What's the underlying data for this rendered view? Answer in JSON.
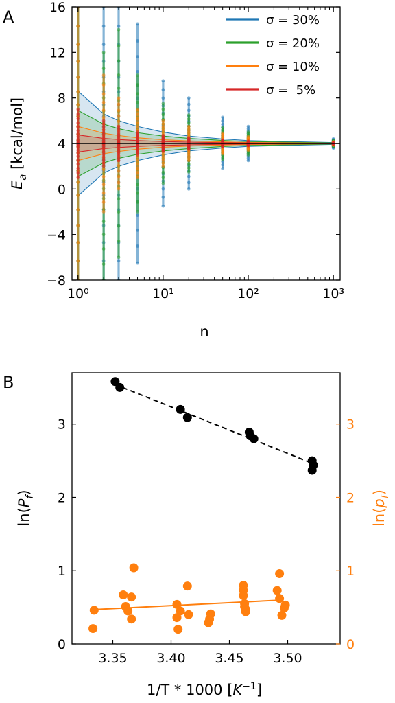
{
  "chart_data": [
    {
      "panel_label": "A",
      "type": "scatter",
      "xlabel": "n",
      "xscale": "log",
      "xlim": [
        0.85,
        1200
      ],
      "xtick_labels": [
        "10⁰",
        "10¹",
        "10²",
        "10³"
      ],
      "xticks": [
        1,
        10,
        100,
        1000
      ],
      "ylabel": "E_a [kcal/mol]",
      "ylim": [
        -8,
        16
      ],
      "yticks": [
        16,
        12,
        8,
        4,
        0,
        -4,
        -8
      ],
      "ytick_labels": [
        "16",
        "12",
        "8",
        "4",
        "0",
        "−4",
        "−8"
      ],
      "reference_value": 4,
      "n_values": [
        1,
        2,
        3,
        5,
        10,
        20,
        50,
        100,
        1000
      ],
      "legend_position": "top-right",
      "series": [
        {
          "name": "σ = 30%",
          "sigma": 0.3,
          "color": "#1f77b4"
        },
        {
          "name": "σ = 20%",
          "sigma": 0.2,
          "color": "#2ca02c"
        },
        {
          "name": "σ = 10%",
          "sigma": 0.1,
          "color": "#ff7f0e"
        },
        {
          "name": "σ =  5%",
          "sigma": 0.05,
          "color": "#d62728"
        }
      ],
      "scatter_extent": {
        "x": [
          1,
          2,
          3,
          5,
          10,
          20,
          50,
          100,
          1000
        ],
        "sigma_30": [
          [
            -8,
            16
          ],
          [
            -8,
            16
          ],
          [
            -8,
            16
          ],
          [
            -6.5,
            14.5
          ],
          [
            -1.5,
            9.5
          ],
          [
            0,
            8
          ],
          [
            1.8,
            6.3
          ],
          [
            2.5,
            5.5
          ],
          [
            3.6,
            4.4
          ]
        ],
        "sigma_20": [
          [
            -8,
            16
          ],
          [
            -8,
            12
          ],
          [
            -6,
            14
          ],
          [
            -2,
            10
          ],
          [
            0.5,
            7.5
          ],
          [
            1.5,
            6.5
          ],
          [
            2.6,
            5.4
          ],
          [
            3,
            5
          ],
          [
            3.75,
            4.25
          ]
        ],
        "sigma_10": [
          [
            -8,
            16
          ],
          [
            -2,
            10
          ],
          [
            0,
            8
          ],
          [
            1,
            7
          ],
          [
            2,
            6
          ],
          [
            2.5,
            5.5
          ],
          [
            3.1,
            4.9
          ],
          [
            3.4,
            4.6
          ],
          [
            3.85,
            4.15
          ]
        ],
        "sigma_5": [
          [
            1,
            7
          ],
          [
            2,
            6
          ],
          [
            2.5,
            5.5
          ],
          [
            3,
            5
          ],
          [
            3.3,
            4.7
          ],
          [
            3.5,
            4.5
          ],
          [
            3.7,
            4.3
          ],
          [
            3.8,
            4.2
          ],
          [
            3.95,
            4.05
          ]
        ]
      },
      "std_band_half_width": {
        "x": [
          1,
          2,
          3,
          5,
          10,
          20,
          50,
          100,
          1000
        ],
        "sigma_30": [
          4.6,
          2.6,
          2.0,
          1.5,
          1.0,
          0.65,
          0.4,
          0.25,
          0.08
        ],
        "sigma_20": [
          2.9,
          1.7,
          1.3,
          0.95,
          0.65,
          0.45,
          0.27,
          0.17,
          0.05
        ],
        "sigma_10": [
          1.5,
          0.9,
          0.7,
          0.5,
          0.33,
          0.23,
          0.14,
          0.09,
          0.03
        ],
        "sigma_5": [
          0.75,
          0.45,
          0.35,
          0.25,
          0.17,
          0.12,
          0.07,
          0.05,
          0.015
        ]
      }
    },
    {
      "panel_label": "B",
      "type": "scatter",
      "xlabel": "1/T * 1000 [K⁻¹]",
      "xlim": [
        3.315,
        3.545
      ],
      "xticks": [
        3.35,
        3.4,
        3.45,
        3.5
      ],
      "xtick_labels": [
        "3.35",
        "3.40",
        "3.45",
        "3.50"
      ],
      "ylabel_left": "ln(P_f)",
      "ylabel_right": "ln(p_f)",
      "ylim": [
        0,
        3.7
      ],
      "yticks": [
        0,
        1,
        2,
        3
      ],
      "left_color": "#000000",
      "right_color": "#ff7f0e",
      "series": [
        {
          "axis": "left",
          "x": [
            3.352,
            3.356,
            3.408,
            3.414,
            3.467,
            3.468,
            3.471,
            3.521,
            3.522,
            3.521
          ],
          "y": [
            3.58,
            3.5,
            3.2,
            3.09,
            2.89,
            2.84,
            2.8,
            2.5,
            2.44,
            2.37
          ],
          "fit": {
            "x": [
              3.352,
              3.522
            ],
            "y": [
              3.54,
              2.46
            ]
          }
        },
        {
          "axis": "right",
          "x": [
            3.334,
            3.333,
            3.359,
            3.361,
            3.363,
            3.366,
            3.366,
            3.368,
            3.405,
            3.405,
            3.406,
            3.408,
            3.414,
            3.415,
            3.432,
            3.433,
            3.434,
            3.462,
            3.462,
            3.462,
            3.463,
            3.463,
            3.464,
            3.464,
            3.491,
            3.493,
            3.493,
            3.495,
            3.497,
            3.498
          ],
          "y": [
            0.46,
            0.21,
            0.67,
            0.51,
            0.45,
            0.34,
            0.64,
            1.04,
            0.54,
            0.36,
            0.2,
            0.45,
            0.79,
            0.4,
            0.29,
            0.34,
            0.41,
            0.8,
            0.73,
            0.66,
            0.55,
            0.51,
            0.47,
            0.44,
            0.73,
            0.96,
            0.62,
            0.39,
            0.49,
            0.53
          ],
          "fit": {
            "x": [
              3.334,
              3.496
            ],
            "y": [
              0.47,
              0.6
            ]
          }
        }
      ]
    }
  ]
}
